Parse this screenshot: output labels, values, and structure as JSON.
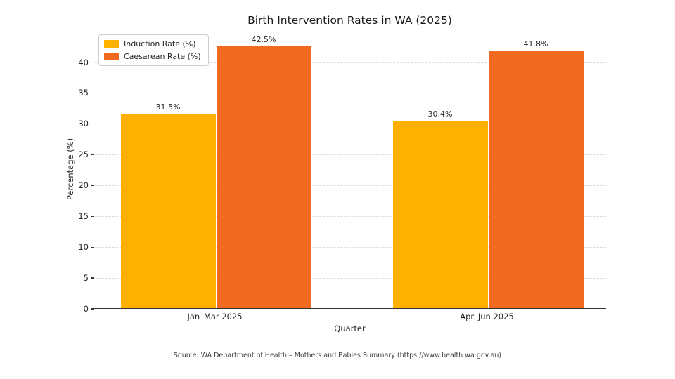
{
  "chart_data": {
    "type": "bar",
    "title": "Birth Intervention Rates in WA (2025)",
    "xlabel": "Quarter",
    "ylabel": "Percentage (%)",
    "categories": [
      "Jan–Mar 2025",
      "Apr–Jun 2025"
    ],
    "series": [
      {
        "name": "Induction Rate (%)",
        "color": "#FFB000",
        "values": [
          31.5,
          30.4
        ],
        "value_labels": [
          "31.5%",
          "30.4%"
        ]
      },
      {
        "name": "Caesarean Rate (%)",
        "color": "#F06A20",
        "values": [
          42.5,
          41.8
        ],
        "value_labels": [
          "42.5%",
          "41.8%"
        ]
      }
    ],
    "yticks": [
      0,
      5,
      10,
      15,
      20,
      25,
      30,
      35,
      40
    ],
    "ylim": [
      0,
      45.3
    ],
    "grid": true,
    "grid_style": "dashed",
    "legend_position": "upper-left",
    "source": "Source: WA Department of Health – Mothers and Babies Summary (https://www.health.wa.gov.au)"
  }
}
